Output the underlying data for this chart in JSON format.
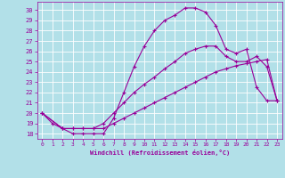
{
  "xlabel": "Windchill (Refroidissement éolien,°C)",
  "bg_color": "#b2e0e8",
  "grid_color": "#ffffff",
  "line_color": "#990099",
  "xlim": [
    -0.5,
    23.5
  ],
  "ylim": [
    17.5,
    30.8
  ],
  "xticks": [
    0,
    1,
    2,
    3,
    4,
    5,
    6,
    7,
    8,
    9,
    10,
    11,
    12,
    13,
    14,
    15,
    16,
    17,
    18,
    19,
    20,
    21,
    22,
    23
  ],
  "yticks": [
    18,
    19,
    20,
    21,
    22,
    23,
    24,
    25,
    26,
    27,
    28,
    29,
    30
  ],
  "line1_x": [
    0,
    1,
    2,
    3,
    4,
    5,
    6,
    7,
    8,
    9,
    10,
    11,
    12,
    13,
    14,
    15,
    16,
    17,
    18,
    19,
    20,
    21,
    22,
    23
  ],
  "line1_y": [
    20.0,
    19.0,
    18.5,
    18.0,
    18.0,
    18.0,
    18.0,
    19.5,
    22.0,
    24.5,
    26.5,
    28.0,
    29.0,
    29.5,
    30.2,
    30.2,
    29.8,
    28.5,
    26.2,
    25.8,
    26.2,
    22.5,
    21.2,
    21.2
  ],
  "line2_x": [
    0,
    2,
    3,
    4,
    5,
    6,
    7,
    8,
    9,
    10,
    11,
    12,
    13,
    14,
    15,
    16,
    17,
    18,
    19,
    20,
    21,
    22,
    23
  ],
  "line2_y": [
    20.0,
    18.5,
    18.5,
    18.5,
    18.5,
    19.0,
    20.0,
    21.0,
    22.0,
    22.8,
    23.5,
    24.3,
    25.0,
    25.8,
    26.2,
    26.5,
    26.5,
    25.5,
    25.0,
    25.0,
    25.5,
    24.5,
    21.2
  ],
  "line3_x": [
    0,
    2,
    3,
    4,
    5,
    6,
    7,
    8,
    9,
    10,
    11,
    12,
    13,
    14,
    15,
    16,
    17,
    18,
    19,
    20,
    21,
    22,
    23
  ],
  "line3_y": [
    20.0,
    18.5,
    18.5,
    18.5,
    18.5,
    18.5,
    19.0,
    19.5,
    20.0,
    20.5,
    21.0,
    21.5,
    22.0,
    22.5,
    23.0,
    23.5,
    24.0,
    24.3,
    24.6,
    24.8,
    25.0,
    25.2,
    21.2
  ]
}
